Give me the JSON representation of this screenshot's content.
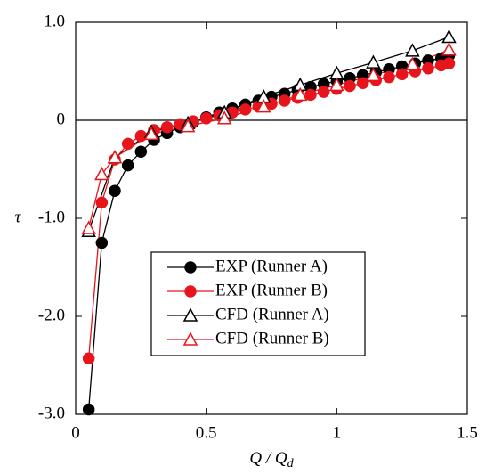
{
  "chart_data": {
    "type": "line",
    "xlabel": {
      "main": "Q / Q",
      "sub": "d"
    },
    "ylabel": "τ",
    "xlim": [
      0,
      1.5
    ],
    "xticks": [
      0,
      0.5,
      1,
      1.5
    ],
    "ylim": [
      -3,
      1
    ],
    "yticks": [
      {
        "value": 1,
        "label": "1.0"
      },
      0,
      {
        "value": -1,
        "label": "-1.0"
      },
      {
        "value": -2,
        "label": "-2.0"
      },
      {
        "value": -3,
        "label": "-3.0"
      }
    ],
    "zero_line": true,
    "legend": "center",
    "series": [
      {
        "name": "EXP (Runner A)",
        "color": "#000000",
        "marker": "circle",
        "filled": true,
        "x": [
          0.05,
          0.1,
          0.15,
          0.2,
          0.25,
          0.3,
          0.35,
          0.4,
          0.45,
          0.5,
          0.55,
          0.6,
          0.65,
          0.7,
          0.75,
          0.8,
          0.85,
          0.9,
          0.95,
          1.0,
          1.05,
          1.1,
          1.15,
          1.2,
          1.25,
          1.3,
          1.35,
          1.4,
          1.43
        ],
        "values": [
          -2.95,
          -1.25,
          -0.72,
          -0.46,
          -0.32,
          -0.2,
          -0.13,
          -0.07,
          -0.02,
          0.03,
          0.08,
          0.12,
          0.16,
          0.2,
          0.24,
          0.27,
          0.31,
          0.34,
          0.37,
          0.4,
          0.43,
          0.46,
          0.49,
          0.52,
          0.55,
          0.58,
          0.61,
          0.63,
          0.66
        ]
      },
      {
        "name": "EXP (Runner B)",
        "color": "#e8141b",
        "marker": "circle",
        "filled": true,
        "x": [
          0.05,
          0.1,
          0.15,
          0.2,
          0.25,
          0.3,
          0.35,
          0.4,
          0.45,
          0.5,
          0.55,
          0.6,
          0.65,
          0.7,
          0.75,
          0.8,
          0.85,
          0.9,
          0.95,
          1.0,
          1.05,
          1.1,
          1.15,
          1.2,
          1.25,
          1.3,
          1.35,
          1.4,
          1.43
        ],
        "values": [
          -2.43,
          -0.84,
          -0.4,
          -0.24,
          -0.16,
          -0.1,
          -0.07,
          -0.04,
          -0.01,
          0.02,
          0.05,
          0.08,
          0.11,
          0.14,
          0.17,
          0.2,
          0.23,
          0.26,
          0.29,
          0.32,
          0.35,
          0.38,
          0.41,
          0.44,
          0.47,
          0.5,
          0.53,
          0.56,
          0.58
        ]
      },
      {
        "name": "CFD (Runner A)",
        "color": "#000000",
        "marker": "triangle",
        "filled": false,
        "x": [
          0.05,
          0.15,
          0.29,
          0.43,
          0.57,
          0.72,
          0.86,
          1.0,
          1.14,
          1.29,
          1.43
        ],
        "values": [
          -1.13,
          -0.38,
          -0.12,
          -0.03,
          0.08,
          0.24,
          0.36,
          0.48,
          0.59,
          0.71,
          0.85
        ]
      },
      {
        "name": "CFD (Runner B)",
        "color": "#e8141b",
        "marker": "triangle",
        "filled": false,
        "x": [
          0.05,
          0.1,
          0.15,
          0.29,
          0.43,
          0.57,
          0.72,
          0.86,
          1.0,
          1.14,
          1.29,
          1.43
        ],
        "values": [
          -1.1,
          -0.55,
          -0.38,
          -0.14,
          -0.06,
          0.02,
          0.14,
          0.26,
          0.36,
          0.46,
          0.57,
          0.72
        ]
      }
    ]
  }
}
